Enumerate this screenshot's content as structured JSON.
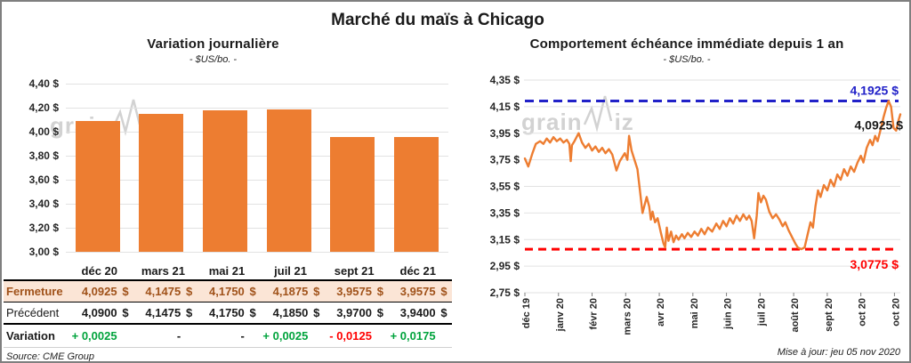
{
  "page": {
    "title": "Marché du maïs à Chicago",
    "source": "Source: CME Group",
    "updated": "Mise à jour: jeu 05 nov 2020",
    "watermark": "grainwiz"
  },
  "colors": {
    "orange": "#ED7D31",
    "grid": "#E2E2E2",
    "axis_text": "#262626",
    "high_blue": "#2121C8",
    "low_red": "#FF0000",
    "gain_green": "#00A33C",
    "loss_red": "#FF0000",
    "fermeture_bg": "#FBE5D6",
    "fermeture_text": "#A0521A",
    "tick": "#808080"
  },
  "table": {
    "currency": "$",
    "columns": [
      "déc 20",
      "mars 21",
      "mai 21",
      "juil 21",
      "sept 21",
      "déc 21"
    ],
    "fermeture": {
      "label": "Fermeture",
      "values": [
        "4,0925",
        "4,1475",
        "4,1750",
        "4,1875",
        "3,9575",
        "3,9575"
      ]
    },
    "precedent": {
      "label": "Précédent",
      "values": [
        "4,0900",
        "4,1475",
        "4,1750",
        "4,1850",
        "3,9700",
        "3,9400"
      ]
    },
    "variation": {
      "label": "Variation",
      "values": [
        "+ 0,0025",
        "-",
        "-",
        "+ 0,0025",
        "- 0,0125",
        "+ 0,0175"
      ],
      "colors": [
        "#00A33C",
        "#1a1a1a",
        "#1a1a1a",
        "#00A33C",
        "#FF0000",
        "#00A33C"
      ]
    }
  },
  "chart_data": [
    {
      "type": "bar",
      "title": "Variation journalière",
      "subtitle": "- $US/bo. -",
      "categories": [
        "déc 20",
        "mars 21",
        "mai 21",
        "juil 21",
        "sept 21",
        "déc 21"
      ],
      "values": [
        4.0925,
        4.1475,
        4.175,
        4.1875,
        3.9575,
        3.9575
      ],
      "ylim": [
        3.0,
        4.4
      ],
      "ytick_labels": [
        "4,40 $",
        "4,20 $",
        "4,00 $",
        "3,80 $",
        "3,60 $",
        "3,40 $",
        "3,20 $",
        "3,00 $"
      ],
      "bar_color": "#ED7D31",
      "grid": true,
      "legend": "none"
    },
    {
      "type": "line",
      "title": "Comportement échéance immédiate depuis 1 an",
      "subtitle": "- $US/bo. -",
      "ylim": [
        2.75,
        4.35
      ],
      "ytick_labels": [
        "4,35 $",
        "4,15 $",
        "3,95 $",
        "3,75 $",
        "3,55 $",
        "3,35 $",
        "3,15 $",
        "2,95 $",
        "2,75 $"
      ],
      "xtick_labels": [
        "déc 19",
        "janv 20",
        "févr 20",
        "mars 20",
        "avr 20",
        "mai 20",
        "juin 20",
        "juil 20",
        "août 20",
        "sept 20",
        "oct 20",
        "oct 20"
      ],
      "x_weeks_per_tick": 4,
      "line_color": "#ED7D31",
      "grid": true,
      "high_line": {
        "value": 4.1925,
        "label": "4,1925 $",
        "color": "#2121C8"
      },
      "low_line": {
        "value": 3.0775,
        "label": "3,0775 $",
        "color": "#FF0000"
      },
      "last_label": {
        "value": 4.0925,
        "label": "4,0925 $",
        "color": "#1a1a1a"
      },
      "points": [
        [
          0,
          3.76
        ],
        [
          0.4,
          3.7
        ],
        [
          0.9,
          3.8
        ],
        [
          1.3,
          3.87
        ],
        [
          1.8,
          3.89
        ],
        [
          2.2,
          3.87
        ],
        [
          2.6,
          3.91
        ],
        [
          3.0,
          3.88
        ],
        [
          3.4,
          3.92
        ],
        [
          3.8,
          3.89
        ],
        [
          4.2,
          3.91
        ],
        [
          4.6,
          3.88
        ],
        [
          5.0,
          3.9
        ],
        [
          5.3,
          3.87
        ],
        [
          5.45,
          3.74
        ],
        [
          5.6,
          3.86
        ],
        [
          5.9,
          3.89
        ],
        [
          6.4,
          3.95
        ],
        [
          6.8,
          3.88
        ],
        [
          7.2,
          3.84
        ],
        [
          7.6,
          3.87
        ],
        [
          8.0,
          3.82
        ],
        [
          8.4,
          3.85
        ],
        [
          8.8,
          3.81
        ],
        [
          9.2,
          3.84
        ],
        [
          9.6,
          3.8
        ],
        [
          10.0,
          3.83
        ],
        [
          10.4,
          3.79
        ],
        [
          10.9,
          3.67
        ],
        [
          11.3,
          3.74
        ],
        [
          11.9,
          3.8
        ],
        [
          12.2,
          3.75
        ],
        [
          12.4,
          3.93
        ],
        [
          12.7,
          3.82
        ],
        [
          13.0,
          3.76
        ],
        [
          13.4,
          3.68
        ],
        [
          13.7,
          3.52
        ],
        [
          14.0,
          3.35
        ],
        [
          14.5,
          3.47
        ],
        [
          14.8,
          3.4
        ],
        [
          15.0,
          3.3
        ],
        [
          15.2,
          3.36
        ],
        [
          15.5,
          3.28
        ],
        [
          15.8,
          3.31
        ],
        [
          16.2,
          3.2
        ],
        [
          16.5,
          3.12
        ],
        [
          16.7,
          3.09
        ],
        [
          16.9,
          3.24
        ],
        [
          17.1,
          3.14
        ],
        [
          17.4,
          3.21
        ],
        [
          17.7,
          3.13
        ],
        [
          18.0,
          3.18
        ],
        [
          18.3,
          3.15
        ],
        [
          18.7,
          3.19
        ],
        [
          19.0,
          3.16
        ],
        [
          19.4,
          3.2
        ],
        [
          19.8,
          3.17
        ],
        [
          20.2,
          3.21
        ],
        [
          20.6,
          3.18
        ],
        [
          21.0,
          3.23
        ],
        [
          21.4,
          3.19
        ],
        [
          21.8,
          3.24
        ],
        [
          22.3,
          3.21
        ],
        [
          22.8,
          3.27
        ],
        [
          23.2,
          3.23
        ],
        [
          23.6,
          3.29
        ],
        [
          24.0,
          3.25
        ],
        [
          24.4,
          3.31
        ],
        [
          24.8,
          3.27
        ],
        [
          25.2,
          3.33
        ],
        [
          25.6,
          3.29
        ],
        [
          26.0,
          3.34
        ],
        [
          26.4,
          3.3
        ],
        [
          26.7,
          3.33
        ],
        [
          27.0,
          3.29
        ],
        [
          27.3,
          3.16
        ],
        [
          27.6,
          3.33
        ],
        [
          27.8,
          3.5
        ],
        [
          28.1,
          3.43
        ],
        [
          28.4,
          3.48
        ],
        [
          28.7,
          3.45
        ],
        [
          29.1,
          3.36
        ],
        [
          29.5,
          3.31
        ],
        [
          29.9,
          3.34
        ],
        [
          30.3,
          3.3
        ],
        [
          30.7,
          3.25
        ],
        [
          31.0,
          3.28
        ],
        [
          31.4,
          3.22
        ],
        [
          31.8,
          3.17
        ],
        [
          32.2,
          3.12
        ],
        [
          32.5,
          3.09
        ],
        [
          32.9,
          3.0775
        ],
        [
          33.3,
          3.09
        ],
        [
          33.7,
          3.2
        ],
        [
          34.0,
          3.28
        ],
        [
          34.3,
          3.24
        ],
        [
          34.6,
          3.4
        ],
        [
          34.9,
          3.52
        ],
        [
          35.2,
          3.47
        ],
        [
          35.6,
          3.56
        ],
        [
          36.0,
          3.52
        ],
        [
          36.4,
          3.6
        ],
        [
          36.8,
          3.55
        ],
        [
          37.2,
          3.64
        ],
        [
          37.6,
          3.6
        ],
        [
          38.0,
          3.68
        ],
        [
          38.4,
          3.63
        ],
        [
          38.8,
          3.7
        ],
        [
          39.2,
          3.66
        ],
        [
          39.6,
          3.73
        ],
        [
          40.0,
          3.78
        ],
        [
          40.3,
          3.73
        ],
        [
          40.7,
          3.84
        ],
        [
          41.1,
          3.9
        ],
        [
          41.4,
          3.86
        ],
        [
          41.7,
          3.93
        ],
        [
          42.0,
          3.89
        ],
        [
          42.4,
          3.99
        ],
        [
          42.7,
          4.07
        ],
        [
          43.0,
          4.14
        ],
        [
          43.3,
          4.1925
        ],
        [
          43.6,
          4.15
        ],
        [
          43.9,
          3.99
        ],
        [
          44.2,
          3.97
        ],
        [
          44.5,
          4.05
        ],
        [
          44.7,
          4.0925
        ]
      ]
    }
  ]
}
